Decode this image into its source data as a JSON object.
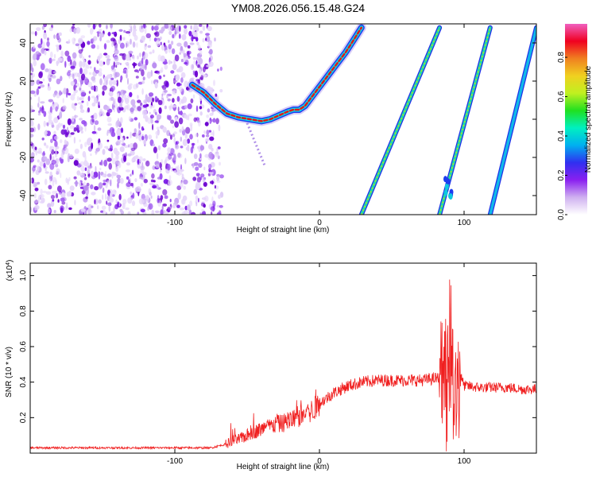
{
  "title": "YM08.2026.056.15.48.G24",
  "chart_data": [
    {
      "type": "heatmap",
      "name": "spectrogram",
      "xlabel": "Height of straight line (km)",
      "ylabel": "Frequency (Hz)",
      "xlim": [
        -200,
        150
      ],
      "ylim": [
        -50,
        50
      ],
      "xticks": [
        -100,
        0,
        100
      ],
      "yticks": [
        -40,
        -20,
        0,
        20,
        40
      ],
      "colorbar": {
        "label": "Normalized spectral amplitude",
        "range": [
          0,
          0.97
        ],
        "ticks": [
          0.0,
          0.2,
          0.4,
          0.6,
          0.8
        ],
        "colors": [
          "#ffffff",
          "#cfb0f0",
          "#8a20f0",
          "#3030f0",
          "#00b0f0",
          "#00f0c0",
          "#20e020",
          "#c0f020",
          "#f0d020",
          "#f08020",
          "#f00020",
          "#f060c0"
        ]
      },
      "noise_region_x": [
        -200,
        -73
      ],
      "tracks": [
        {
          "name": "curved-main-trace",
          "x": [
            -88,
            -80,
            -72,
            -64,
            -56,
            -48,
            -40,
            -34,
            -28,
            -22,
            -18,
            -14,
            -10,
            -5,
            0,
            6,
            12,
            18,
            24,
            29
          ],
          "y": [
            18,
            14,
            8,
            3,
            1,
            0,
            -1,
            0,
            2,
            4,
            5,
            5,
            7,
            12,
            17,
            23,
            29,
            35,
            42,
            48
          ]
        },
        {
          "name": "line-trace-1",
          "x": [
            29,
            83
          ],
          "y": [
            -50,
            48
          ]
        },
        {
          "name": "line-trace-2",
          "x": [
            83,
            118
          ],
          "y": [
            -50,
            48
          ]
        },
        {
          "name": "line-trace-3",
          "x": [
            118,
            150
          ],
          "y": [
            -50,
            48
          ]
        }
      ]
    },
    {
      "type": "line",
      "name": "snr",
      "xlabel": "Height of straight line (km)",
      "ylabel": "SNR (10 * v/v)",
      "yscale_label": "(x10",
      "yscale_exponent": "4",
      "xlim": [
        -200,
        150
      ],
      "ylim": [
        0,
        1.07
      ],
      "xticks": [
        -100,
        0,
        100
      ],
      "yticks": [
        0.2,
        0.4,
        0.6,
        0.8,
        1.0
      ],
      "series_color": "#f02020",
      "envelope": {
        "x": [
          -200,
          -150,
          -100,
          -75,
          -65,
          -55,
          -45,
          -35,
          -25,
          -15,
          -5,
          0,
          10,
          20,
          30,
          40,
          50,
          60,
          70,
          80,
          85,
          88,
          91,
          94,
          97,
          100,
          110,
          120,
          130,
          140,
          150
        ],
        "y": [
          0.03,
          0.03,
          0.03,
          0.03,
          0.05,
          0.08,
          0.12,
          0.15,
          0.17,
          0.2,
          0.24,
          0.28,
          0.34,
          0.38,
          0.4,
          0.41,
          0.41,
          0.41,
          0.41,
          0.42,
          0.42,
          0.3,
          0.6,
          0.2,
          0.45,
          0.38,
          0.37,
          0.37,
          0.37,
          0.36,
          0.36
        ]
      }
    }
  ]
}
